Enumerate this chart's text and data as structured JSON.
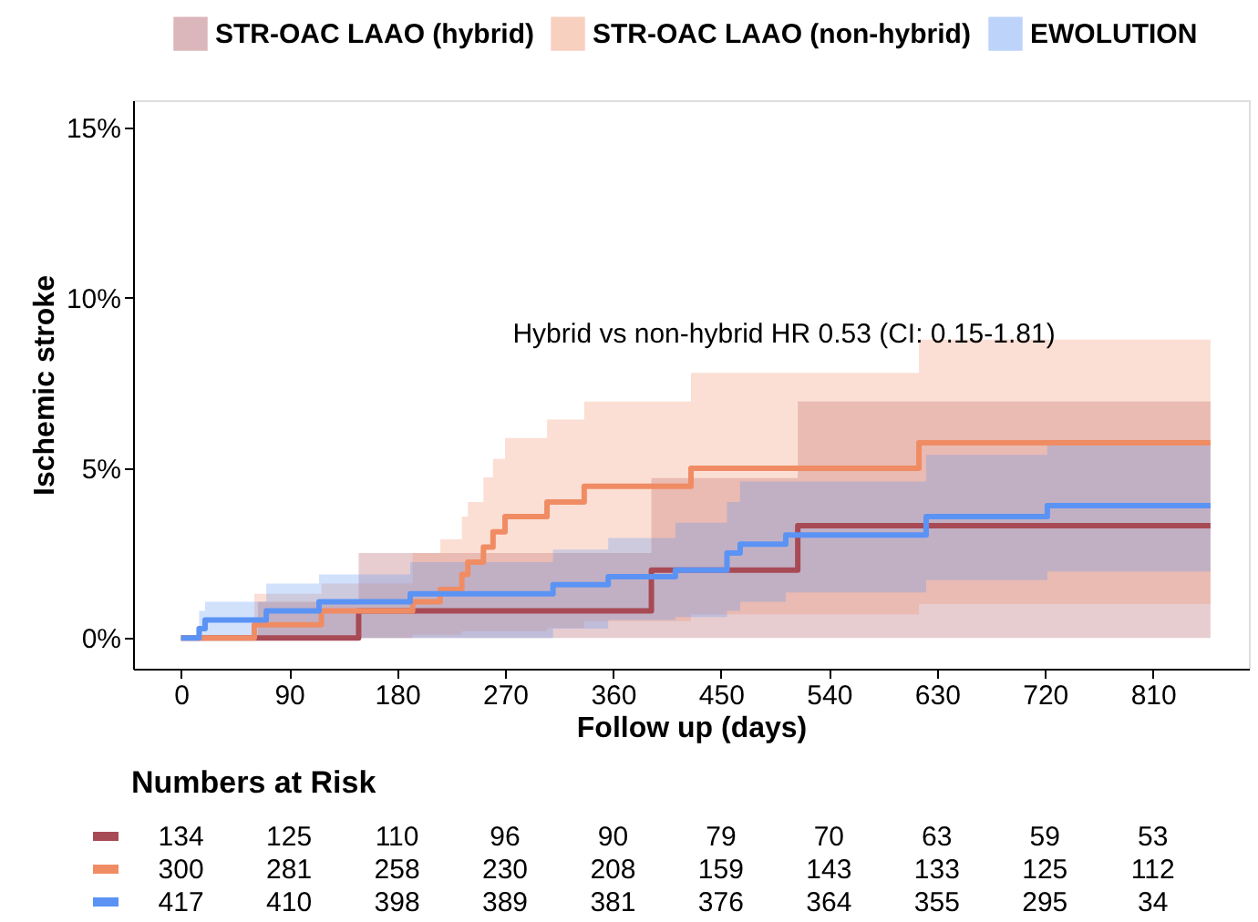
{
  "chart_data": {
    "type": "step",
    "xlabel": "Follow up (days)",
    "ylabel": "Ischemic stroke",
    "xlim": [
      -40,
      890
    ],
    "xticks": [
      0,
      90,
      180,
      270,
      360,
      450,
      540,
      630,
      720,
      810
    ],
    "ylim": [
      -0.9,
      15.8
    ],
    "yticks": [
      {
        "value": 0,
        "label": "0%"
      },
      {
        "value": 5,
        "label": "5%"
      },
      {
        "value": 10,
        "label": "10%"
      },
      {
        "value": 15,
        "label": "15%"
      }
    ],
    "grid": false,
    "legend": "top right",
    "line_style": "solid",
    "marker": "none",
    "series": [
      {
        "name": "STR-OAC LAAO (hybrid)",
        "color": "#a84a55",
        "x": [
          0,
          64,
          148,
          260,
          392,
          514,
          858
        ],
        "values": [
          0,
          0,
          0.8,
          0.8,
          2.0,
          3.3,
          3.3
        ],
        "lower": [
          0,
          0,
          0,
          0,
          0,
          0,
          0
        ],
        "upper": [
          0,
          1.07,
          2.5,
          2.5,
          4.7,
          6.95,
          6.95
        ]
      },
      {
        "name": "STR-OAC LAAO (non-hybrid)",
        "color": "#f08c64",
        "x": [
          0,
          17,
          61,
          117,
          193,
          216,
          234,
          239,
          252,
          260,
          270,
          305,
          336,
          425,
          615,
          858
        ],
        "values": [
          0,
          0,
          0.39,
          0.8,
          1.07,
          1.43,
          1.87,
          2.23,
          2.67,
          3.12,
          3.57,
          4.0,
          4.46,
          4.99,
          5.74,
          5.74
        ],
        "lower": [
          0,
          0,
          0,
          0,
          0.1,
          0.1,
          0.2,
          0.2,
          0.2,
          0.2,
          0.2,
          0.3,
          0.5,
          0.7,
          1.0,
          1.0
        ],
        "upper": [
          0,
          0,
          1.3,
          1.6,
          2.5,
          2.9,
          3.57,
          4.0,
          4.72,
          5.26,
          5.88,
          6.42,
          6.95,
          7.79,
          8.77,
          8.77
        ]
      },
      {
        "name": "EWOLUTION",
        "color": "#5b93f5",
        "x": [
          0,
          15,
          20,
          71,
          115,
          191,
          310,
          356,
          412,
          455,
          466,
          504,
          621,
          722,
          858
        ],
        "values": [
          0,
          0.28,
          0.53,
          0.8,
          1.07,
          1.3,
          1.57,
          1.8,
          2.0,
          2.5,
          2.76,
          3.03,
          3.57,
          3.89,
          3.89
        ],
        "lower": [
          0,
          0,
          0,
          0,
          0,
          0,
          0.28,
          0.53,
          0.62,
          0.8,
          1.07,
          1.34,
          1.7,
          1.96,
          1.96
        ],
        "upper": [
          0,
          0.8,
          1.07,
          1.6,
          1.87,
          2.23,
          2.6,
          2.94,
          3.39,
          4.0,
          4.6,
          4.6,
          5.38,
          5.7,
          5.7
        ]
      }
    ],
    "annotations": [
      "Hybrid vs non-hybrid HR 0.53 (CI: 0.15-1.81)",
      "Numbers at Risk",
      "134",
      "125",
      "110",
      "96",
      "90",
      "79",
      "70",
      "63",
      "59",
      "53",
      "300",
      "281",
      "258",
      "230",
      "208",
      "159",
      "143",
      "133",
      "125",
      "112",
      "417",
      "410",
      "398",
      "389",
      "381",
      "376",
      "364",
      "355",
      "295",
      "34"
    ]
  }
}
